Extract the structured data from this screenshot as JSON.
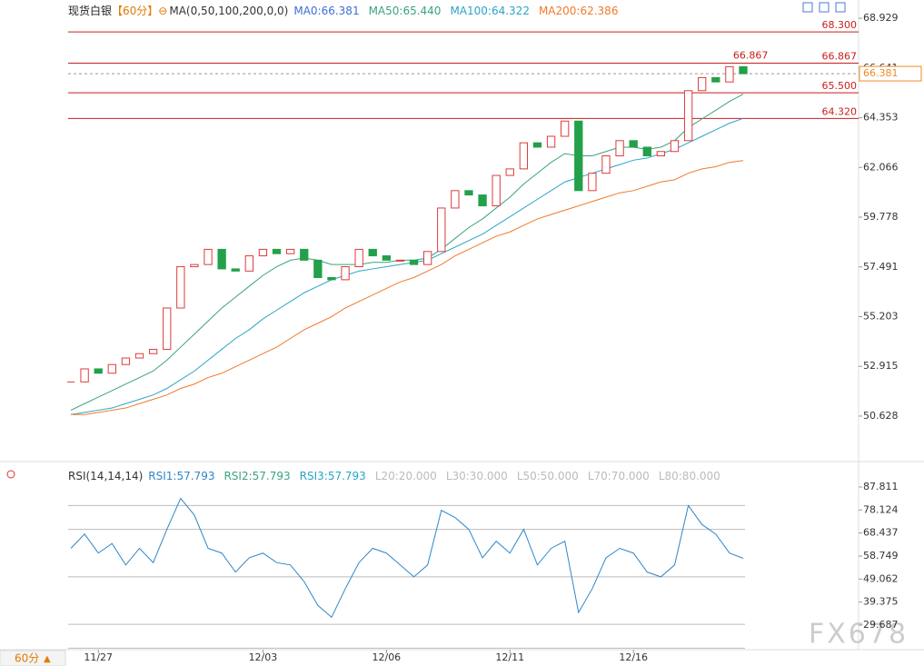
{
  "chart_data": [
    {
      "type": "candlestick",
      "title": "现货白银",
      "period_label": "【60分】",
      "ma_params": "MA(0,50,100,200,0,0)",
      "up_color": "#e03a3a",
      "down_color": "#22a04a",
      "ylim": [
        48.87,
        69.77
      ],
      "yticks": [
        68.929,
        66.641,
        64.353,
        62.066,
        59.778,
        57.491,
        55.203,
        52.915,
        50.628
      ],
      "levels": [
        {
          "value": 68.3,
          "label": "68.300"
        },
        66.867,
        {
          "value": 65.5,
          "label": "65.500"
        },
        {
          "value": 64.32,
          "label": "64.320"
        }
      ],
      "level_color": "#c81e1e",
      "current_price": 66.381,
      "current_color": "#f08a24",
      "max_label": 66.867,
      "max_index": 48,
      "series": [
        {
          "name": "MA0:66.381",
          "color": "#3d6fd0",
          "values": [
            52.2,
            52.8,
            52.6,
            53.0,
            53.3,
            53.5,
            53.7,
            55.6,
            57.5,
            57.6,
            58.3,
            57.4,
            57.3,
            58.0,
            58.3,
            58.1,
            58.3,
            57.8,
            57.0,
            56.9,
            57.5,
            58.3,
            58.0,
            57.8,
            57.8,
            57.6,
            58.2,
            60.2,
            61.0,
            60.8,
            60.3,
            61.7,
            62.0,
            63.2,
            63.0,
            63.5,
            64.2,
            61.0,
            61.8,
            62.6,
            63.3,
            63.0,
            62.6,
            62.8,
            63.3,
            65.6,
            66.2,
            66.0,
            66.7,
            66.381
          ]
        },
        {
          "name": "MA50:65.440",
          "color": "#3aa37e",
          "values": [
            50.9,
            51.2,
            51.5,
            51.8,
            52.1,
            52.4,
            52.7,
            53.2,
            53.8,
            54.4,
            55.0,
            55.6,
            56.1,
            56.6,
            57.1,
            57.5,
            57.8,
            57.9,
            57.8,
            57.6,
            57.6,
            57.6,
            57.7,
            57.7,
            57.8,
            57.8,
            57.9,
            58.3,
            58.8,
            59.3,
            59.7,
            60.2,
            60.7,
            61.3,
            61.8,
            62.3,
            62.7,
            62.6,
            62.6,
            62.8,
            63.0,
            63.0,
            62.9,
            63.0,
            63.3,
            63.9,
            64.3,
            64.7,
            65.1,
            65.44
          ]
        },
        {
          "name": "MA100:64.322",
          "color": "#2ba4c8",
          "values": [
            50.7,
            50.8,
            50.9,
            51.0,
            51.2,
            51.4,
            51.6,
            51.9,
            52.3,
            52.7,
            53.2,
            53.7,
            54.2,
            54.6,
            55.1,
            55.5,
            55.9,
            56.3,
            56.6,
            56.9,
            57.1,
            57.3,
            57.4,
            57.5,
            57.6,
            57.7,
            57.8,
            58.1,
            58.4,
            58.7,
            59.0,
            59.4,
            59.8,
            60.2,
            60.6,
            61.0,
            61.4,
            61.6,
            61.8,
            62.0,
            62.2,
            62.4,
            62.5,
            62.7,
            62.9,
            63.2,
            63.5,
            63.8,
            64.1,
            64.322
          ]
        },
        {
          "name": "MA200:62.386",
          "color": "#f07a2a",
          "values": [
            50.7,
            50.7,
            50.8,
            50.9,
            51.0,
            51.2,
            51.4,
            51.6,
            51.9,
            52.1,
            52.4,
            52.6,
            52.9,
            53.2,
            53.5,
            53.8,
            54.2,
            54.6,
            54.9,
            55.2,
            55.6,
            55.9,
            56.2,
            56.5,
            56.8,
            57.0,
            57.3,
            57.6,
            58.0,
            58.3,
            58.6,
            58.9,
            59.1,
            59.4,
            59.7,
            59.9,
            60.1,
            60.3,
            60.5,
            60.7,
            60.9,
            61.0,
            61.2,
            61.4,
            61.5,
            61.8,
            62.0,
            62.1,
            62.3,
            62.386
          ]
        }
      ]
    },
    {
      "type": "line",
      "title": "RSI(14,14,14)",
      "ylim": [
        19.36,
        95.84
      ],
      "yticks": [
        87.811,
        78.124,
        68.437,
        58.749,
        49.062,
        39.375,
        29.687
      ],
      "categories": [
        null,
        null,
        "11/27",
        null,
        null,
        null,
        null,
        null,
        null,
        null,
        null,
        null,
        null,
        null,
        "12/03",
        null,
        null,
        null,
        null,
        null,
        null,
        null,
        null,
        "12/06",
        null,
        null,
        null,
        null,
        null,
        null,
        null,
        null,
        "12/11",
        null,
        null,
        null,
        null,
        null,
        null,
        null,
        null,
        "12/16",
        null,
        null,
        null,
        null,
        null,
        null,
        null,
        null
      ],
      "series": [
        {
          "name": "RSI1:57.793",
          "color": "#2f86c8",
          "values": [
            62,
            68,
            60,
            64,
            55,
            62,
            56,
            70,
            83,
            76,
            62,
            60,
            52,
            58,
            60,
            56,
            55,
            48,
            38,
            33,
            45,
            56,
            62,
            60,
            55,
            50,
            55,
            78,
            75,
            70,
            58,
            65,
            60,
            70,
            55,
            62,
            65,
            35,
            45,
            58,
            62,
            60,
            52,
            50,
            55,
            80,
            72,
            68,
            60,
            57.793
          ]
        }
      ],
      "other_legend": [
        {
          "text": "RSI2:57.793",
          "color": "#3aa37e"
        },
        {
          "text": "RSI3:57.793",
          "color": "#2ba4c8"
        }
      ],
      "levels": [
        {
          "value": 20,
          "label": "L20:20.000"
        },
        {
          "value": 30,
          "label": "L30:30.000"
        },
        {
          "value": 50,
          "label": "L50:50.000"
        },
        {
          "value": 70,
          "label": "L70:70.000"
        },
        {
          "value": 80,
          "label": "L80:80.000"
        }
      ],
      "level_color": "#bbbbbb"
    }
  ],
  "period": "60分",
  "watermark": "FX678"
}
